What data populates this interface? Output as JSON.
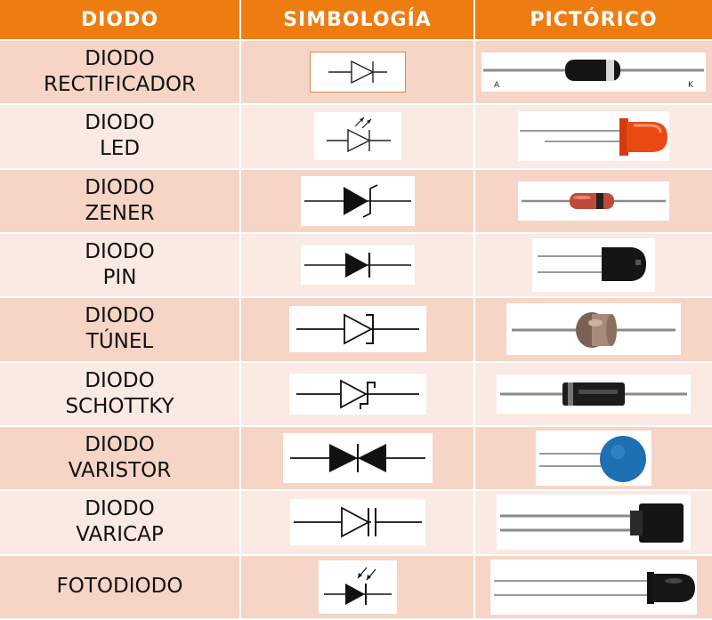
{
  "headers": {
    "diodo": "DIODO",
    "simbologia": "SIMBOLOGÍA",
    "pictorico": "PICTÓRICO"
  },
  "colors": {
    "header_bg": "#ee7d11",
    "row_odd": "#f7d5c6",
    "row_even": "#fbeae3"
  },
  "rows": [
    {
      "line1": "DIODO",
      "line2": "RECTIFICADOR",
      "symbol_icon": "rectifier-diode-symbol-icon",
      "picture": "rectifier-diode-photo",
      "anode_label": "A",
      "cathode_label": "K"
    },
    {
      "line1": "DIODO",
      "line2": "LED",
      "symbol_icon": "led-symbol-icon",
      "picture": "red-led-photo"
    },
    {
      "line1": "DIODO",
      "line2": "ZENER",
      "symbol_icon": "zener-diode-symbol-icon",
      "picture": "zener-diode-photo"
    },
    {
      "line1": "DIODO",
      "line2": "PIN",
      "symbol_icon": "pin-diode-symbol-icon",
      "picture": "pin-diode-photo"
    },
    {
      "line1": "DIODO",
      "line2": "TÚNEL",
      "symbol_icon": "tunnel-diode-symbol-icon",
      "picture": "tunnel-diode-photo"
    },
    {
      "line1": "DIODO",
      "line2": "SCHOTTKY",
      "symbol_icon": "schottky-diode-symbol-icon",
      "picture": "schottky-diode-photo"
    },
    {
      "line1": "DIODO",
      "line2": "VARISTOR",
      "symbol_icon": "varistor-symbol-icon",
      "picture": "varistor-photo"
    },
    {
      "line1": "DIODO",
      "line2": "VARICAP",
      "symbol_icon": "varicap-diode-symbol-icon",
      "picture": "varicap-diode-photo"
    },
    {
      "line1": "FOTODIODO",
      "line2": "",
      "symbol_icon": "photodiode-symbol-icon",
      "picture": "photodiode-photo"
    }
  ]
}
